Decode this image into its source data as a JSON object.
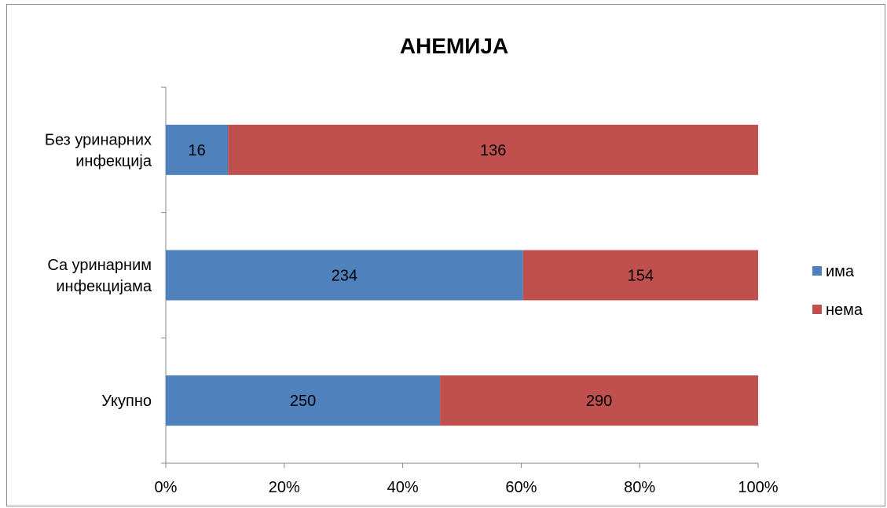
{
  "chart_data": {
    "type": "bar",
    "orientation": "horizontal",
    "stacked": "percent",
    "title": "АНЕМИЈА",
    "categories": [
      "Без уринарних инфекција",
      "Са уринарним инфекцијама",
      "Укупно"
    ],
    "category_lines": [
      [
        "Без уринарних",
        "инфекција"
      ],
      [
        "Са уринарним",
        "инфекцијама"
      ],
      [
        "Укупно"
      ]
    ],
    "series": [
      {
        "name": "има",
        "values": [
          16,
          234,
          250
        ],
        "color": "#4f81bd"
      },
      {
        "name": "нема",
        "values": [
          136,
          154,
          290
        ],
        "color": "#c0504d"
      }
    ],
    "x_ticks": [
      "0%",
      "20%",
      "40%",
      "60%",
      "80%",
      "100%"
    ],
    "xlim": [
      0,
      100
    ],
    "grid": false,
    "legend_position": "right"
  }
}
